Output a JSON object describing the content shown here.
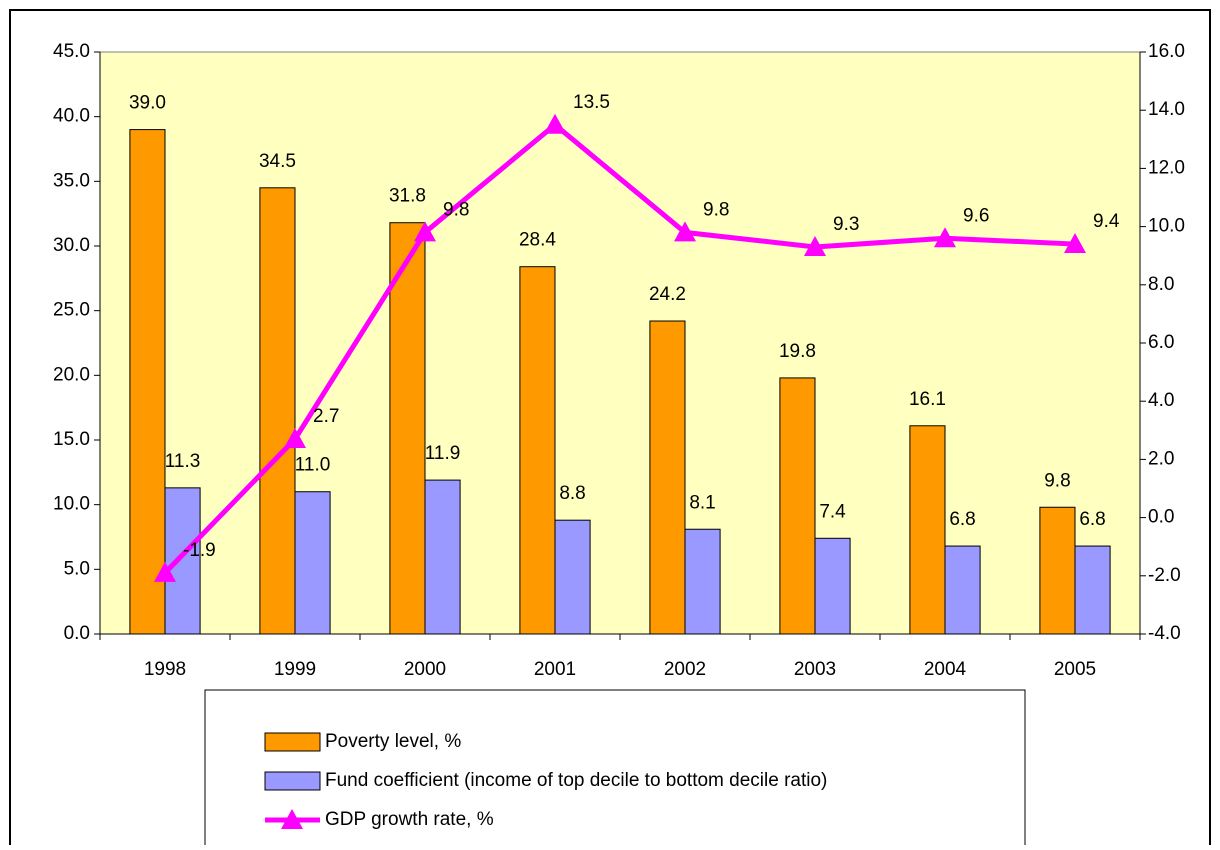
{
  "chart_data": {
    "type": "bar",
    "categories": [
      "1998",
      "1999",
      "2000",
      "2001",
      "2002",
      "2003",
      "2004",
      "2005"
    ],
    "series": [
      {
        "name": "Poverty level, %",
        "color": "#ff9900",
        "type": "bar",
        "values": [
          39.0,
          34.5,
          31.8,
          28.4,
          24.2,
          19.8,
          16.1,
          9.8
        ],
        "value_labels": [
          "39.0",
          "34.5",
          "31.8",
          "28.4",
          "24.2",
          "19.8",
          "16.1",
          "9.8"
        ]
      },
      {
        "name": "Fund coefficient (income of top decile to bottom decile ratio)",
        "color": "#9999ff",
        "type": "bar",
        "values": [
          11.3,
          11.0,
          11.9,
          8.8,
          8.1,
          7.4,
          6.8,
          6.8
        ],
        "value_labels": [
          "11.3",
          "11.0",
          "11.9",
          "8.8",
          "8.1",
          "7.4",
          "6.8",
          "6.8"
        ]
      },
      {
        "name": "GDP growth rate, %",
        "color": "#ff00ff",
        "type": "line",
        "axis": "y2",
        "values": [
          -1.9,
          2.7,
          9.8,
          13.5,
          9.8,
          9.3,
          9.6,
          9.4
        ],
        "value_labels": [
          "-1.9",
          "2.7",
          "9.8",
          "13.5",
          "9.8",
          "9.3",
          "9.6",
          "9.4"
        ]
      }
    ],
    "ylim": [
      0,
      45
    ],
    "yticks": [
      {
        "value": 0,
        "label": "0.0"
      },
      {
        "value": 5,
        "label": "5.0"
      },
      {
        "value": 10,
        "label": "10.0"
      },
      {
        "value": 15,
        "label": "15.0"
      },
      {
        "value": 20,
        "label": "20.0"
      },
      {
        "value": 25,
        "label": "25.0"
      },
      {
        "value": 30,
        "label": "30.0"
      },
      {
        "value": 35,
        "label": "35.0"
      },
      {
        "value": 40,
        "label": "40.0"
      },
      {
        "value": 45,
        "label": "45.0"
      }
    ],
    "y2lim": [
      -4,
      16
    ],
    "y2ticks": [
      {
        "value": -4,
        "label": "-4.0"
      },
      {
        "value": -2,
        "label": "-2.0"
      },
      {
        "value": 0,
        "label": "0.0"
      },
      {
        "value": 2,
        "label": "2.0"
      },
      {
        "value": 4,
        "label": "4.0"
      },
      {
        "value": 6,
        "label": "6.0"
      },
      {
        "value": 8,
        "label": "8.0"
      },
      {
        "value": 10,
        "label": "10.0"
      },
      {
        "value": 12,
        "label": "12.0"
      },
      {
        "value": 14,
        "label": "14.0"
      },
      {
        "value": 16,
        "label": "16.0"
      }
    ],
    "plot_background": "#ffffc0"
  }
}
